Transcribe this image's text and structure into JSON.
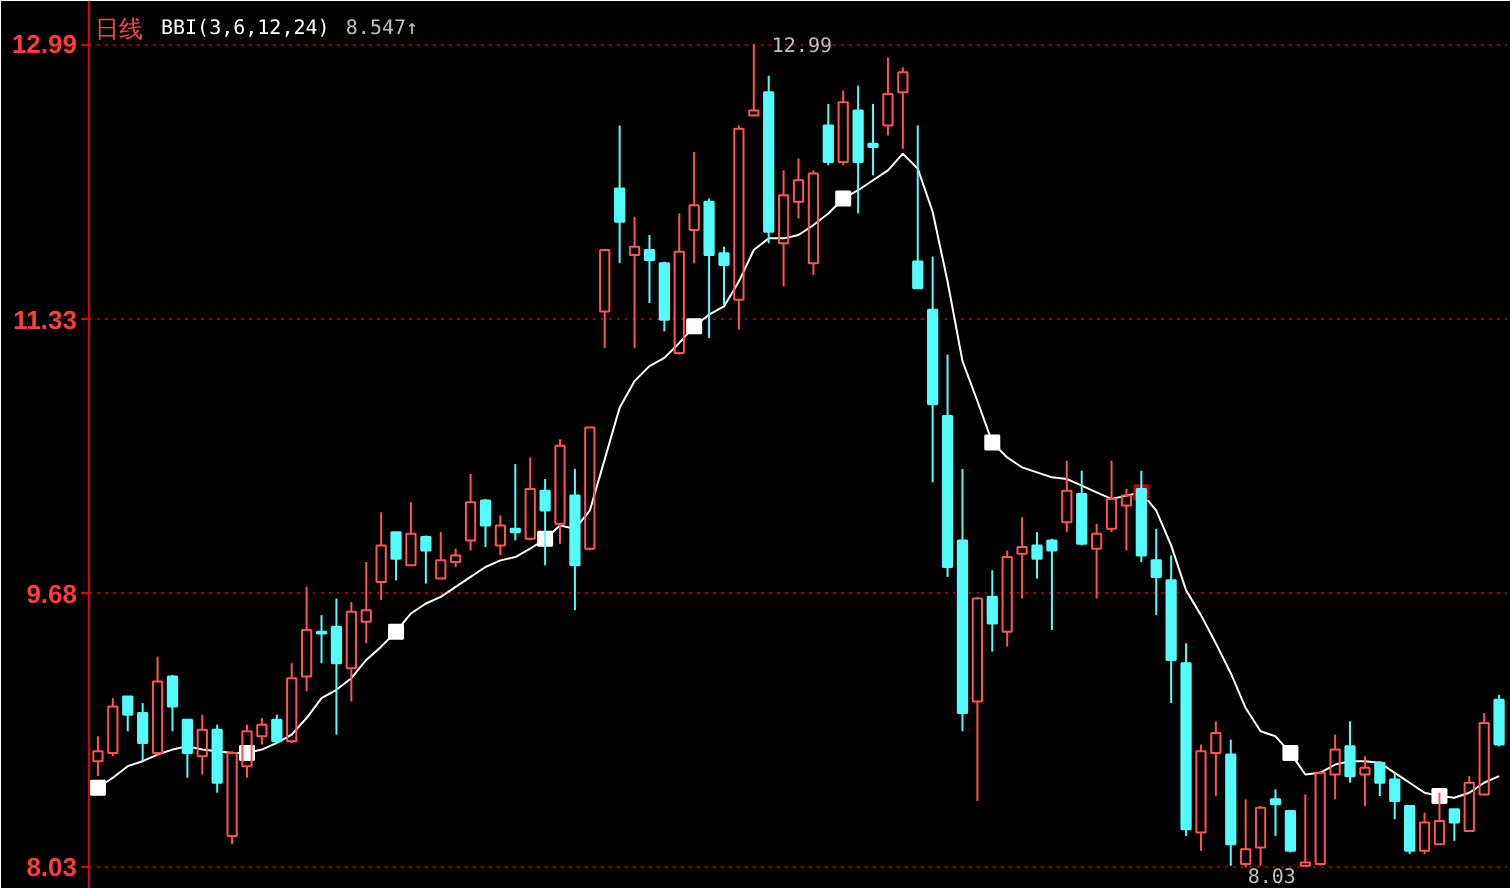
{
  "chart_data": {
    "type": "candlestick",
    "title": "日线",
    "categories": [
      null,
      null,
      null,
      null,
      null,
      null,
      null,
      null,
      null,
      null,
      null,
      null,
      null,
      null,
      null,
      null,
      null,
      null,
      null,
      null,
      null,
      null,
      null,
      null,
      null,
      null,
      null,
      null,
      null,
      null,
      null,
      null,
      null,
      null,
      null,
      null,
      null,
      null,
      null,
      null,
      null,
      null,
      null,
      null,
      null,
      null,
      null,
      null,
      null,
      null,
      null,
      null,
      null,
      null,
      null,
      null,
      null,
      null,
      null,
      null,
      null,
      null,
      null,
      null,
      null,
      null,
      null,
      null,
      null,
      null,
      null,
      null,
      null,
      null,
      null,
      null,
      null,
      null,
      null,
      null,
      null,
      null,
      null,
      null,
      null,
      null,
      null,
      null,
      null,
      null,
      null,
      null,
      null,
      null,
      null
    ],
    "ohlc": [
      [
        8.67,
        8.82,
        8.58,
        8.73
      ],
      [
        8.72,
        9.05,
        8.7,
        9.0
      ],
      [
        9.06,
        9.06,
        8.85,
        8.95
      ],
      [
        8.96,
        9.02,
        8.67,
        8.78
      ],
      [
        8.72,
        9.3,
        8.7,
        9.15
      ],
      [
        9.18,
        9.19,
        8.85,
        9.0
      ],
      [
        8.92,
        8.92,
        8.57,
        8.72
      ],
      [
        8.7,
        8.95,
        8.59,
        8.86
      ],
      [
        8.86,
        8.89,
        8.48,
        8.54
      ],
      [
        8.22,
        8.73,
        8.17,
        8.72
      ],
      [
        8.64,
        8.89,
        8.57,
        8.85
      ],
      [
        8.82,
        8.93,
        8.77,
        8.89
      ],
      [
        8.92,
        8.95,
        8.78,
        8.79
      ],
      [
        8.79,
        9.26,
        8.78,
        9.17
      ],
      [
        9.18,
        9.72,
        9.09,
        9.46
      ],
      [
        9.45,
        9.55,
        9.26,
        9.44
      ],
      [
        9.48,
        9.65,
        8.83,
        9.26
      ],
      [
        9.23,
        9.63,
        9.03,
        9.57
      ],
      [
        9.51,
        9.87,
        9.38,
        9.58
      ],
      [
        9.75,
        10.17,
        9.64,
        9.97
      ],
      [
        10.05,
        10.05,
        9.76,
        9.89
      ],
      [
        9.85,
        10.23,
        9.85,
        10.04
      ],
      [
        10.02,
        10.03,
        9.74,
        9.94
      ],
      [
        9.77,
        10.05,
        9.77,
        9.88
      ],
      [
        9.87,
        9.95,
        9.84,
        9.91
      ],
      [
        10.0,
        10.4,
        9.94,
        10.23
      ],
      [
        10.24,
        10.25,
        9.96,
        10.09
      ],
      [
        9.97,
        10.15,
        9.91,
        10.09
      ],
      [
        10.07,
        10.46,
        10.0,
        10.05
      ],
      [
        10.01,
        10.5,
        10.0,
        10.31
      ],
      [
        10.3,
        10.37,
        9.85,
        10.18
      ],
      [
        10.1,
        10.61,
        9.98,
        10.57
      ],
      [
        10.27,
        10.43,
        9.58,
        9.85
      ],
      [
        9.95,
        10.68,
        9.94,
        10.68
      ],
      [
        11.38,
        11.75,
        11.16,
        11.75
      ],
      [
        12.12,
        12.5,
        11.67,
        11.92
      ],
      [
        11.72,
        11.95,
        11.16,
        11.77
      ],
      [
        11.75,
        11.84,
        11.43,
        11.69
      ],
      [
        11.67,
        11.68,
        11.26,
        11.33
      ],
      [
        11.13,
        11.97,
        11.12,
        11.74
      ],
      [
        11.87,
        12.34,
        11.67,
        12.02
      ],
      [
        12.04,
        12.06,
        11.22,
        11.72
      ],
      [
        11.73,
        11.77,
        11.42,
        11.66
      ],
      [
        11.45,
        12.5,
        11.27,
        12.48
      ],
      [
        12.56,
        12.99,
        12.56,
        12.59
      ],
      [
        12.7,
        12.8,
        11.79,
        11.86
      ],
      [
        11.79,
        12.23,
        11.53,
        12.08
      ],
      [
        12.04,
        12.3,
        11.94,
        12.17
      ],
      [
        11.67,
        12.23,
        11.6,
        12.21
      ],
      [
        12.5,
        12.63,
        12.26,
        12.28
      ],
      [
        12.28,
        12.71,
        12.26,
        12.64
      ],
      [
        12.59,
        12.74,
        11.97,
        12.28
      ],
      [
        12.39,
        12.63,
        12.2,
        12.37
      ],
      [
        12.5,
        12.91,
        12.44,
        12.69
      ],
      [
        12.7,
        12.85,
        12.36,
        12.82
      ],
      [
        11.68,
        12.5,
        11.52,
        11.52
      ],
      [
        11.39,
        11.71,
        10.35,
        10.82
      ],
      [
        10.75,
        11.12,
        9.78,
        9.84
      ],
      [
        10.0,
        10.43,
        8.85,
        8.96
      ],
      [
        9.03,
        9.66,
        8.43,
        9.65
      ],
      [
        9.66,
        9.82,
        9.33,
        9.5
      ],
      [
        9.45,
        9.94,
        9.36,
        9.9
      ],
      [
        9.92,
        10.14,
        9.65,
        9.96
      ],
      [
        9.97,
        10.05,
        9.77,
        9.89
      ],
      [
        10.0,
        10.01,
        9.46,
        9.94
      ],
      [
        10.11,
        10.48,
        10.05,
        10.3
      ],
      [
        10.28,
        10.42,
        9.97,
        9.98
      ],
      [
        9.95,
        10.1,
        9.65,
        10.04
      ],
      [
        10.07,
        10.48,
        10.05,
        10.25
      ],
      [
        10.21,
        10.31,
        9.94,
        10.27
      ],
      [
        10.31,
        10.42,
        9.87,
        9.91
      ],
      [
        9.88,
        10.07,
        9.55,
        9.78
      ],
      [
        9.76,
        9.91,
        9.02,
        9.28
      ],
      [
        9.26,
        9.38,
        8.22,
        8.26
      ],
      [
        8.24,
        8.77,
        8.13,
        8.73
      ],
      [
        8.72,
        8.91,
        8.46,
        8.84
      ],
      [
        8.71,
        8.8,
        8.04,
        8.17
      ],
      [
        8.05,
        8.44,
        8.03,
        8.14
      ],
      [
        8.15,
        8.4,
        8.04,
        8.39
      ],
      [
        8.44,
        8.5,
        8.22,
        8.41
      ],
      [
        8.37,
        8.37,
        8.12,
        8.13
      ],
      [
        8.04,
        8.47,
        8.04,
        8.06
      ],
      [
        8.05,
        8.61,
        8.04,
        8.6
      ],
      [
        8.59,
        8.83,
        8.44,
        8.74
      ],
      [
        8.76,
        8.91,
        8.54,
        8.58
      ],
      [
        8.59,
        8.7,
        8.4,
        8.63
      ],
      [
        8.66,
        8.67,
        8.46,
        8.54
      ],
      [
        8.56,
        8.6,
        8.32,
        8.43
      ],
      [
        8.4,
        8.4,
        8.11,
        8.13
      ],
      [
        8.13,
        8.36,
        8.11,
        8.3
      ],
      [
        8.17,
        8.48,
        8.17,
        8.31
      ],
      [
        8.38,
        8.38,
        8.19,
        8.3
      ],
      [
        8.25,
        8.58,
        8.25,
        8.54
      ],
      [
        8.47,
        8.96,
        8.47,
        8.9
      ],
      [
        9.04,
        9.07,
        8.76,
        8.77
      ]
    ],
    "colors": [
      "#ff5454",
      "#ff5454",
      "#54fcfc",
      "#54fcfc",
      "#ff5454",
      "#54fcfc",
      "#54fcfc",
      "#ff5454",
      "#54fcfc",
      "#ff5454",
      "#ff5454",
      "#ff5454",
      "#54fcfc",
      "#ff5454",
      "#ff5454",
      "#54fcfc",
      "#54fcfc",
      "#ff5454",
      "#ff5454",
      "#ff5454",
      "#54fcfc",
      "#ff5454",
      "#54fcfc",
      "#ff5454",
      "#ff5454",
      "#ff5454",
      "#54fcfc",
      "#ff5454",
      "#54fcfc",
      "#ff5454",
      "#54fcfc",
      "#ff5454",
      "#54fcfc",
      "#ff5454",
      "#ff5454",
      "#54fcfc",
      "#ff5454",
      "#54fcfc",
      "#54fcfc",
      "#ff5454",
      "#ff5454",
      "#54fcfc",
      "#54fcfc",
      "#ff5454",
      "#ff5454",
      "#54fcfc",
      "#ff5454",
      "#ff5454",
      "#ff5454",
      "#54fcfc",
      "#ff5454",
      "#54fcfc",
      "#54fcfc",
      "#ff5454",
      "#ff5454",
      "#54fcfc",
      "#54fcfc",
      "#54fcfc",
      "#54fcfc",
      "#ff5454",
      "#54fcfc",
      "#ff5454",
      "#ff5454",
      "#54fcfc",
      "#54fcfc",
      "#ff5454",
      "#54fcfc",
      "#ff5454",
      "#ff5454",
      "#ff5454",
      "#54fcfc",
      "#54fcfc",
      "#54fcfc",
      "#54fcfc",
      "#ff5454",
      "#ff5454",
      "#54fcfc",
      "#ff5454",
      "#ff5454",
      "#54fcfc",
      "#54fcfc",
      "#ff5454",
      "#ff5454",
      "#ff5454",
      "#54fcfc",
      "#ff5454",
      "#54fcfc",
      "#54fcfc",
      "#54fcfc",
      "#ff5454",
      "#ff5454",
      "#54fcfc",
      "#ff5454",
      "#ff5454",
      "#54fcfc"
    ],
    "value_labels": [
      null,
      null,
      null,
      null,
      null,
      null,
      null,
      null,
      null,
      null,
      null,
      null,
      null,
      null,
      null,
      null,
      null,
      null,
      null,
      null,
      null,
      null,
      null,
      null,
      null,
      null,
      null,
      null,
      null,
      null,
      null,
      null,
      null,
      null,
      null,
      null,
      null,
      null,
      null,
      null,
      null,
      null,
      null,
      null,
      "12.99",
      null,
      null,
      null,
      null,
      null,
      null,
      null,
      null,
      null,
      null,
      null,
      null,
      null,
      null,
      null,
      null,
      null,
      null,
      null,
      null,
      null,
      null,
      null,
      null,
      null,
      null,
      null,
      null,
      null,
      null,
      null,
      null,
      "8.03",
      null,
      null,
      null,
      null,
      null,
      null,
      null,
      null,
      null,
      null,
      null,
      null,
      null,
      null,
      null,
      null,
      null
    ],
    "series": [
      {
        "type": "line",
        "name": "BBI(3,6,12,24)",
        "color": "#ffffff",
        "values": [
          8.51,
          8.57,
          8.64,
          8.67,
          8.71,
          8.74,
          8.76,
          8.74,
          8.73,
          8.72,
          8.72,
          8.74,
          8.78,
          8.83,
          8.93,
          9.05,
          9.1,
          9.17,
          9.28,
          9.36,
          9.45,
          9.56,
          9.62,
          9.66,
          9.72,
          9.78,
          9.84,
          9.88,
          9.9,
          9.95,
          10.01,
          10.09,
          10.07,
          10.18,
          10.49,
          10.8,
          10.96,
          11.05,
          11.1,
          11.19,
          11.29,
          11.36,
          11.41,
          11.56,
          11.75,
          11.82,
          11.82,
          11.84,
          11.9,
          11.97,
          12.06,
          12.11,
          12.17,
          12.23,
          12.33,
          12.24,
          11.98,
          11.56,
          11.08,
          10.84,
          10.59,
          10.5,
          10.44,
          10.41,
          10.38,
          10.37,
          10.33,
          10.29,
          10.25,
          10.27,
          10.29,
          10.18,
          9.97,
          9.7,
          9.55,
          9.38,
          9.2,
          8.99,
          8.85,
          8.82,
          8.72,
          8.59,
          8.6,
          8.65,
          8.67,
          8.67,
          8.66,
          8.6,
          8.54,
          8.48,
          8.46,
          8.45,
          8.48,
          8.54,
          8.58
        ]
      },
      {
        "type": "scatter",
        "marker": "square",
        "values": [
          8.51,
          null,
          null,
          null,
          null,
          null,
          null,
          null,
          null,
          null,
          8.72,
          null,
          null,
          null,
          null,
          null,
          null,
          null,
          null,
          null,
          9.45,
          null,
          null,
          null,
          null,
          null,
          null,
          null,
          null,
          null,
          10.01,
          null,
          null,
          null,
          null,
          null,
          null,
          null,
          null,
          null,
          11.29,
          null,
          null,
          null,
          null,
          null,
          null,
          null,
          null,
          null,
          12.06,
          null,
          null,
          null,
          null,
          null,
          null,
          null,
          null,
          null,
          10.59,
          null,
          null,
          null,
          null,
          null,
          null,
          null,
          null,
          null,
          10.29,
          null,
          null,
          null,
          null,
          null,
          null,
          null,
          null,
          null,
          8.72,
          null,
          null,
          null,
          null,
          null,
          null,
          null,
          null,
          null,
          8.46,
          null,
          null,
          null,
          null
        ],
        "colors": [
          "#ffffff",
          null,
          null,
          null,
          null,
          null,
          null,
          null,
          null,
          null,
          "#ffffff",
          null,
          null,
          null,
          null,
          null,
          null,
          null,
          null,
          null,
          "#ffffff",
          null,
          null,
          null,
          null,
          null,
          null,
          null,
          null,
          null,
          "#ffffff",
          null,
          null,
          null,
          null,
          null,
          null,
          null,
          null,
          null,
          "#ffffff",
          null,
          null,
          null,
          null,
          null,
          null,
          null,
          null,
          null,
          "#ffffff",
          null,
          null,
          null,
          null,
          null,
          null,
          null,
          null,
          null,
          "#ffffff",
          null,
          null,
          null,
          null,
          null,
          null,
          null,
          null,
          null,
          "#c00000",
          null,
          null,
          null,
          null,
          null,
          null,
          null,
          null,
          null,
          "#ffffff",
          null,
          null,
          null,
          null,
          null,
          null,
          null,
          null,
          null,
          "#ffffff",
          null,
          null,
          null,
          null
        ]
      }
    ],
    "annotations": [
      "8.547↑"
    ],
    "ylim": [
      7.9,
      13.25
    ],
    "yticks": [
      12.99,
      11.33,
      9.68,
      8.03
    ],
    "grid": "y",
    "tick_labels": "y"
  }
}
